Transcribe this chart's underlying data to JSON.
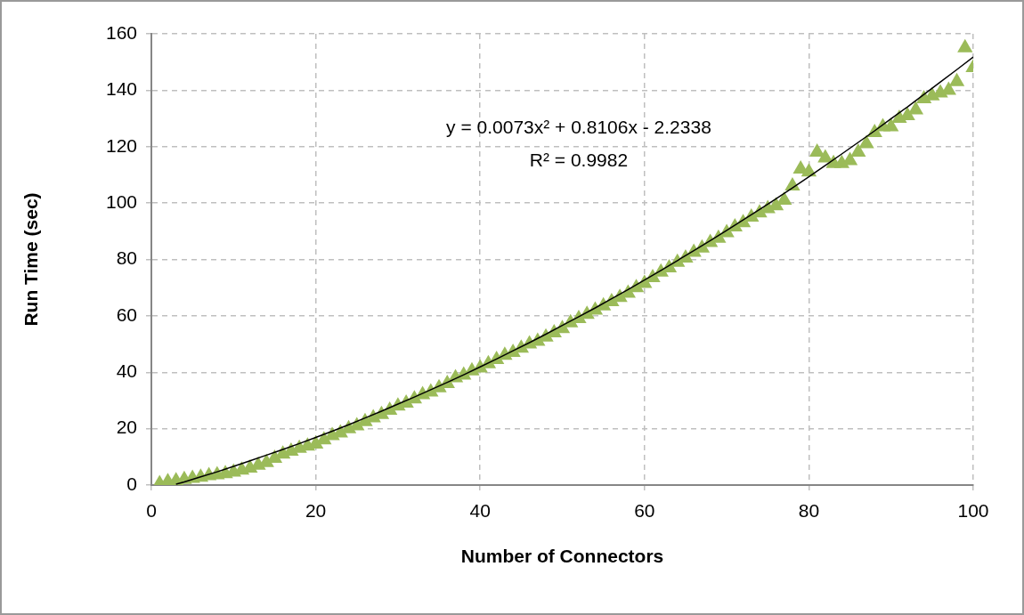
{
  "chart_data": {
    "type": "scatter",
    "xlabel": "Number of Connectors",
    "ylabel": "Run Time (sec)",
    "annotations": [
      "y = 0.0073x² + 0.8106x - 2.2338",
      "R² = 0.9982"
    ],
    "xlim": [
      0,
      100
    ],
    "xticks": [
      0,
      20,
      40,
      60,
      80,
      100
    ],
    "ylim": [
      0,
      160
    ],
    "yticks": [
      0,
      20,
      40,
      60,
      80,
      100,
      120,
      140,
      160
    ],
    "grid": true,
    "legend": false,
    "series": [
      {
        "type": "scatter",
        "color": "#9bbb59",
        "marker": "triangle",
        "x": [
          1,
          2,
          3,
          4,
          5,
          6,
          7,
          8,
          9,
          10,
          11,
          12,
          13,
          14,
          15,
          16,
          17,
          18,
          19,
          20,
          21,
          22,
          23,
          24,
          25,
          26,
          27,
          28,
          29,
          30,
          31,
          32,
          33,
          34,
          35,
          36,
          37,
          38,
          39,
          40,
          41,
          42,
          43,
          44,
          45,
          46,
          47,
          48,
          49,
          50,
          51,
          52,
          53,
          54,
          55,
          56,
          57,
          58,
          59,
          60,
          61,
          62,
          63,
          64,
          65,
          66,
          67,
          68,
          69,
          70,
          71,
          72,
          73,
          74,
          75,
          76,
          77,
          78,
          79,
          80,
          81,
          82,
          83,
          84,
          85,
          86,
          87,
          88,
          89,
          90,
          91,
          92,
          93,
          94,
          95,
          96,
          97,
          98,
          99,
          100
        ],
        "values": [
          0.5,
          1.2,
          1.5,
          2,
          2.4,
          2.8,
          3.3,
          3.6,
          4,
          4.6,
          5.3,
          6,
          7,
          8,
          9.5,
          11,
          12,
          13,
          13.8,
          14.5,
          16,
          17.5,
          18.5,
          20,
          21,
          22.5,
          23.8,
          25,
          26.5,
          28,
          29,
          30.5,
          32,
          33,
          34.5,
          36,
          38,
          39,
          40.5,
          41.5,
          43,
          44.5,
          46,
          47,
          48.5,
          50,
          51,
          52.5,
          54,
          55.5,
          57.5,
          59,
          60.5,
          62,
          63.5,
          65,
          66.5,
          68,
          70,
          71.5,
          73.5,
          75.5,
          77,
          79,
          80.5,
          82.5,
          84,
          86,
          87.5,
          89.5,
          91.5,
          93,
          95,
          96.5,
          98,
          99,
          101,
          106,
          112,
          111,
          118,
          116,
          114,
          114,
          115,
          118,
          121,
          125,
          127,
          127,
          130,
          131,
          133,
          137,
          138,
          139,
          140,
          143,
          155,
          148
        ]
      },
      {
        "type": "line",
        "color": "#000000",
        "marker": "none",
        "x": [
          3,
          4,
          6,
          8,
          10,
          12,
          14,
          16,
          18,
          20,
          22,
          24,
          26,
          28,
          30,
          32,
          34,
          36,
          38,
          40,
          42,
          44,
          46,
          48,
          50,
          52,
          54,
          56,
          58,
          60,
          62,
          64,
          66,
          68,
          70,
          72,
          74,
          76,
          78,
          80,
          82,
          84,
          86,
          88,
          90,
          92,
          94,
          96,
          98,
          100
        ],
        "values": [
          0.3,
          1.1,
          2.9,
          4.7,
          6.6,
          8.6,
          10.6,
          12.6,
          14.7,
          16.9,
          19.1,
          21.4,
          23.8,
          26.2,
          28.7,
          31.2,
          33.8,
          36.4,
          39.1,
          41.9,
          44.7,
          47.6,
          50.5,
          53.5,
          56.6,
          59.7,
          62.8,
          66.1,
          69.3,
          72.7,
          76.1,
          79.6,
          83.1,
          86.7,
          90.3,
          94,
          97.7,
          101.5,
          105.4,
          109.3,
          113.3,
          117.4,
          121.5,
          125.6,
          129.9,
          134.1,
          138.5,
          142.9,
          147.3,
          151.8
        ]
      }
    ]
  }
}
